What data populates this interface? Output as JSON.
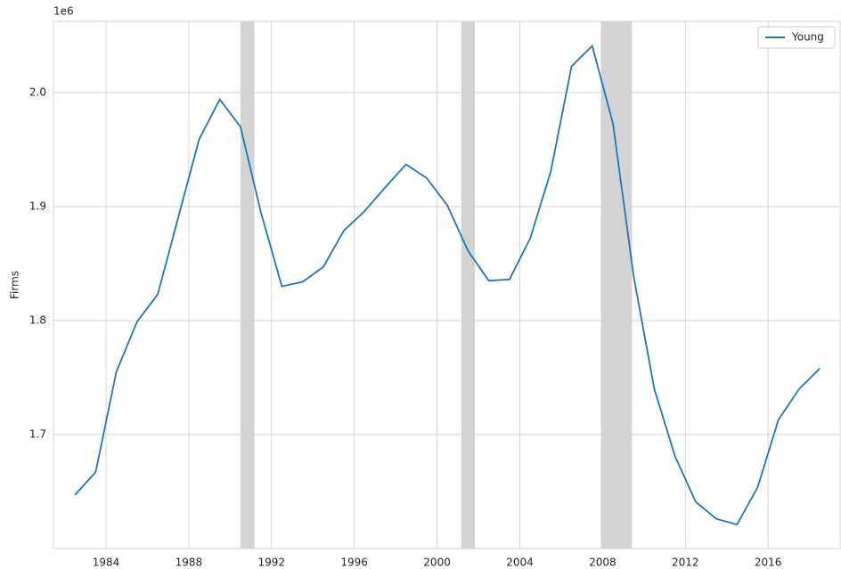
{
  "chart_data": {
    "type": "line",
    "y_label": "Firms",
    "y_offset_label": "1e6",
    "x": [
      1982.5,
      1983.5,
      1984.5,
      1985.5,
      1986.5,
      1987.5,
      1988.5,
      1989.5,
      1990.5,
      1991.5,
      1992.5,
      1993.5,
      1994.5,
      1995.5,
      1996.5,
      1997.5,
      1998.5,
      1999.5,
      2000.5,
      2001.5,
      2002.5,
      2003.5,
      2004.5,
      2005.5,
      2006.5,
      2007.5,
      2008.5,
      2009.5,
      2010.5,
      2011.5,
      2012.5,
      2013.5,
      2014.5,
      2015.5,
      2016.5,
      2017.5,
      2018.5
    ],
    "series": [
      {
        "name": "Young",
        "color": "#1f77b4",
        "values": [
          1647000,
          1667000,
          1755000,
          1799000,
          1823000,
          1891000,
          1959000,
          1994000,
          1970000,
          1894000,
          1830000,
          1834000,
          1847000,
          1879000,
          1896000,
          1917000,
          1937000,
          1925000,
          1901000,
          1861000,
          1835000,
          1836000,
          1872000,
          1931000,
          2023000,
          2041000,
          1973000,
          1839000,
          1740000,
          1681000,
          1641000,
          1626000,
          1621000,
          1654000,
          1713000,
          1740000,
          1758000
        ]
      }
    ],
    "shaded_regions": [
      [
        1990.5,
        1991.17
      ],
      [
        2001.17,
        2001.83
      ],
      [
        2007.92,
        2009.42
      ]
    ],
    "shade_color": "#d3d3d3",
    "xlim": [
      1981.46,
      2019.48
    ],
    "ylim": [
      1600000,
      2062500
    ],
    "xticks": [
      1984,
      1988,
      1992,
      1996,
      2000,
      2004,
      2008,
      2012,
      2016
    ],
    "yticks": [
      {
        "value": 1700000,
        "label": "1.7"
      },
      {
        "value": 1800000,
        "label": "1.8"
      },
      {
        "value": 1900000,
        "label": "1.9"
      },
      {
        "value": 2000000,
        "label": "2.0"
      }
    ],
    "grid": true,
    "legend_loc": "upper right"
  }
}
